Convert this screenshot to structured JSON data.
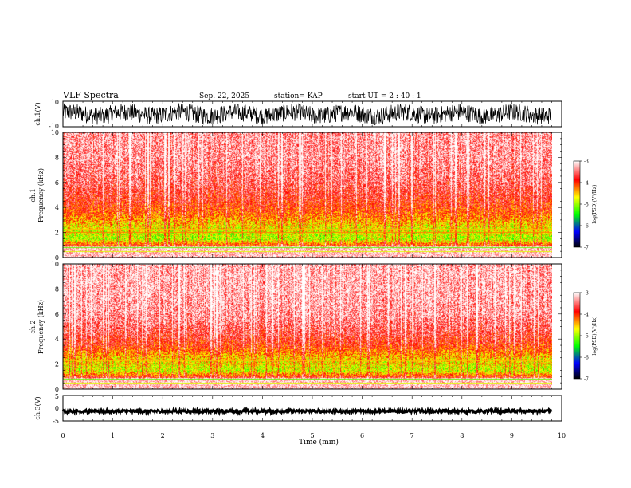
{
  "header": {
    "title": "VLF Spectra",
    "date": "Sep. 22, 2025",
    "station": "station= KAP",
    "start": "start  UT =  2 : 40 : 1"
  },
  "colorbar": {
    "label": "log(PSD)(V²/Hz)",
    "ticks": [
      "-3",
      "-4",
      "-5",
      "-6",
      "-7"
    ],
    "tick_values": [
      -3,
      -4,
      -5,
      -6,
      -7
    ],
    "range": [
      -7,
      -3
    ],
    "colors": [
      "#ffffff",
      "#ff0000",
      "#ffff00",
      "#00ff00",
      "#0000ff",
      "#000000"
    ]
  },
  "chart_data": [
    {
      "type": "line",
      "name": "ch1-waveform",
      "ylabel": "ch.1(V)",
      "yticks": [
        "10",
        "-10"
      ],
      "ylim": [
        -10,
        10
      ],
      "x_range": [
        0,
        9.8
      ],
      "amplitude_note": "dense noise roughly between -10 and 10 V"
    },
    {
      "type": "heatmap",
      "name": "ch1-spectrogram",
      "ylabel": "ch.1\nFrequency  (kHz)",
      "ylabel_top": "ch.1",
      "ylabel_bottom": "Frequency  (kHz)",
      "yticks": [
        "0",
        "2",
        "4",
        "6",
        "8",
        "10"
      ],
      "ylim": [
        0,
        10
      ],
      "x_range": [
        0,
        9.8
      ],
      "band_profile": [
        {
          "freq_khz": 0.5,
          "logpsd": -3.0
        },
        {
          "freq_khz": 1.5,
          "logpsd": -4.9
        },
        {
          "freq_khz": 2.5,
          "logpsd": -4.6
        },
        {
          "freq_khz": 3.5,
          "logpsd": -4.1
        },
        {
          "freq_khz": 4.5,
          "logpsd": -3.8
        },
        {
          "freq_khz": 6.0,
          "logpsd": -3.5
        },
        {
          "freq_khz": 8.0,
          "logpsd": -3.3
        },
        {
          "freq_khz": 9.5,
          "logpsd": -3.3
        }
      ]
    },
    {
      "type": "heatmap",
      "name": "ch2-spectrogram",
      "ylabel_top": "ch.2",
      "ylabel_bottom": "Frequency  (kHz)",
      "yticks": [
        "0",
        "2",
        "4",
        "6",
        "8",
        "10"
      ],
      "ylim": [
        0,
        10
      ],
      "x_range": [
        0,
        9.8
      ],
      "band_profile": [
        {
          "freq_khz": 0.5,
          "logpsd": -3.0
        },
        {
          "freq_khz": 1.5,
          "logpsd": -4.8
        },
        {
          "freq_khz": 2.5,
          "logpsd": -4.5
        },
        {
          "freq_khz": 3.5,
          "logpsd": -3.9
        },
        {
          "freq_khz": 4.5,
          "logpsd": -3.6
        },
        {
          "freq_khz": 6.0,
          "logpsd": -3.3
        },
        {
          "freq_khz": 8.0,
          "logpsd": -3.2
        },
        {
          "freq_khz": 9.5,
          "logpsd": -3.2
        }
      ]
    },
    {
      "type": "line",
      "name": "ch3-waveform",
      "ylabel": "ch.3(V)",
      "yticks": [
        "5",
        "0",
        "-5"
      ],
      "ylim": [
        -5,
        5
      ],
      "x_range": [
        0,
        9.8
      ],
      "level_v": -1.2,
      "amplitude_v": 0.6
    }
  ],
  "xaxis": {
    "label": "Time  (min)",
    "ticks": [
      "0",
      "1",
      "2",
      "3",
      "4",
      "5",
      "6",
      "7",
      "8",
      "9",
      "10"
    ],
    "range": [
      0,
      10
    ]
  }
}
